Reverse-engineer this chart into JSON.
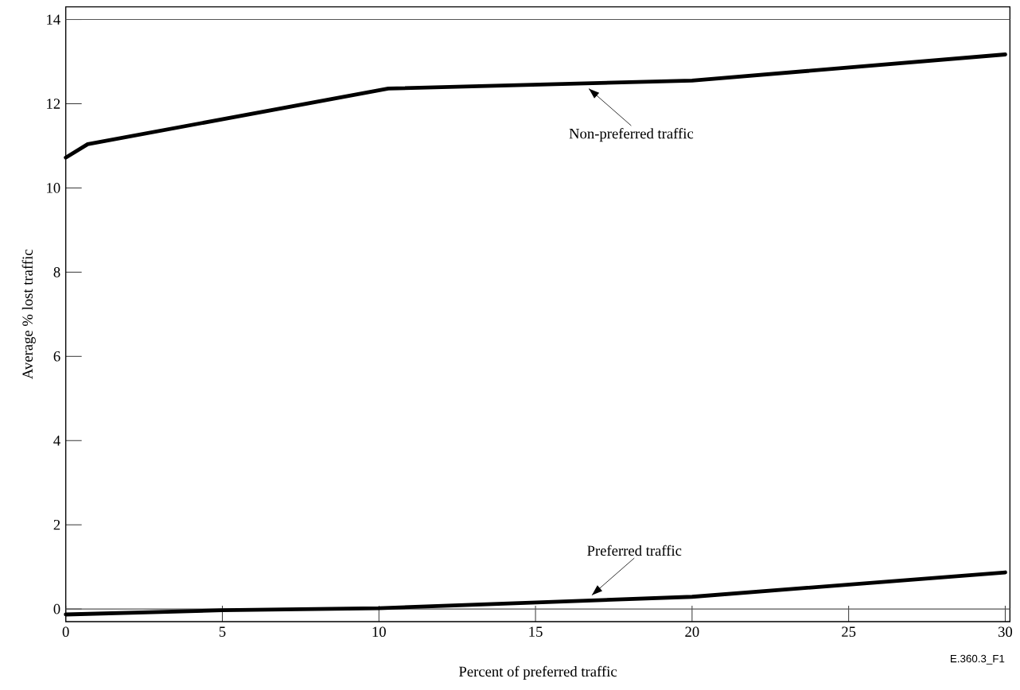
{
  "chart_data": {
    "type": "line",
    "xlabel": "Percent of preferred traffic",
    "ylabel": "Average % lost traffic",
    "xlim": [
      0,
      30.15
    ],
    "ylim": [
      -0.3,
      14.3
    ],
    "xticks": [
      0,
      5,
      10,
      15,
      20,
      25,
      30
    ],
    "yticks": [
      0,
      2,
      4,
      6,
      8,
      10,
      12,
      14
    ],
    "marker": "none",
    "line_style": "solid",
    "series": [
      {
        "name": "Non-preferred traffic",
        "color": "#000000",
        "x": [
          0,
          0.7,
          10.3,
          20,
          30
        ],
        "values": [
          10.72,
          11.04,
          12.36,
          12.55,
          13.17
        ]
      },
      {
        "name": "Preferred traffic",
        "color": "#000000",
        "x": [
          0,
          5,
          10,
          20,
          30
        ],
        "values": [
          -0.13,
          -0.03,
          0.02,
          0.29,
          0.87
        ]
      }
    ],
    "ref_lines": [
      {
        "axis": "y",
        "value": 0,
        "color": "#555555"
      },
      {
        "axis": "y",
        "value": 14,
        "color": "#555555"
      }
    ],
    "annotations": [
      "E.360.3_F1"
    ]
  }
}
